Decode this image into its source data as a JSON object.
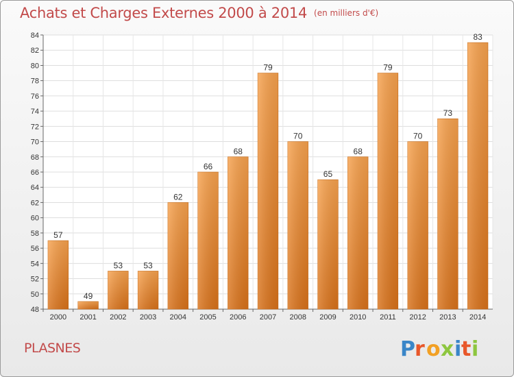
{
  "header": {
    "title": "Achats et Charges Externes 2000 à 2014",
    "unit": "(en milliers d'€)"
  },
  "commune": "PLASNES",
  "logo": {
    "text": "Proxiti",
    "icon": "proxiti-logo",
    "colors": [
      "#4a90d9",
      "#e8572a",
      "#8dc63f",
      "#f5a623",
      "#2e86c1"
    ]
  },
  "chart_data": {
    "type": "bar",
    "title": "Achats et Charges Externes 2000 à 2014",
    "subtitle": "(en milliers d'€)",
    "xlabel": "",
    "ylabel": "",
    "categories": [
      "2000",
      "2001",
      "2002",
      "2003",
      "2004",
      "2005",
      "2006",
      "2007",
      "2008",
      "2009",
      "2010",
      "2011",
      "2012",
      "2013",
      "2014"
    ],
    "values": [
      57,
      49,
      53,
      53,
      62,
      66,
      68,
      79,
      70,
      65,
      68,
      79,
      70,
      73,
      83
    ],
    "ylim": [
      48,
      84
    ],
    "yticks": [
      48,
      50,
      52,
      54,
      56,
      58,
      60,
      62,
      64,
      66,
      68,
      70,
      72,
      74,
      76,
      78,
      80,
      82,
      84
    ],
    "grid": true,
    "legend": "none",
    "bar_color": "#f08c2c"
  }
}
